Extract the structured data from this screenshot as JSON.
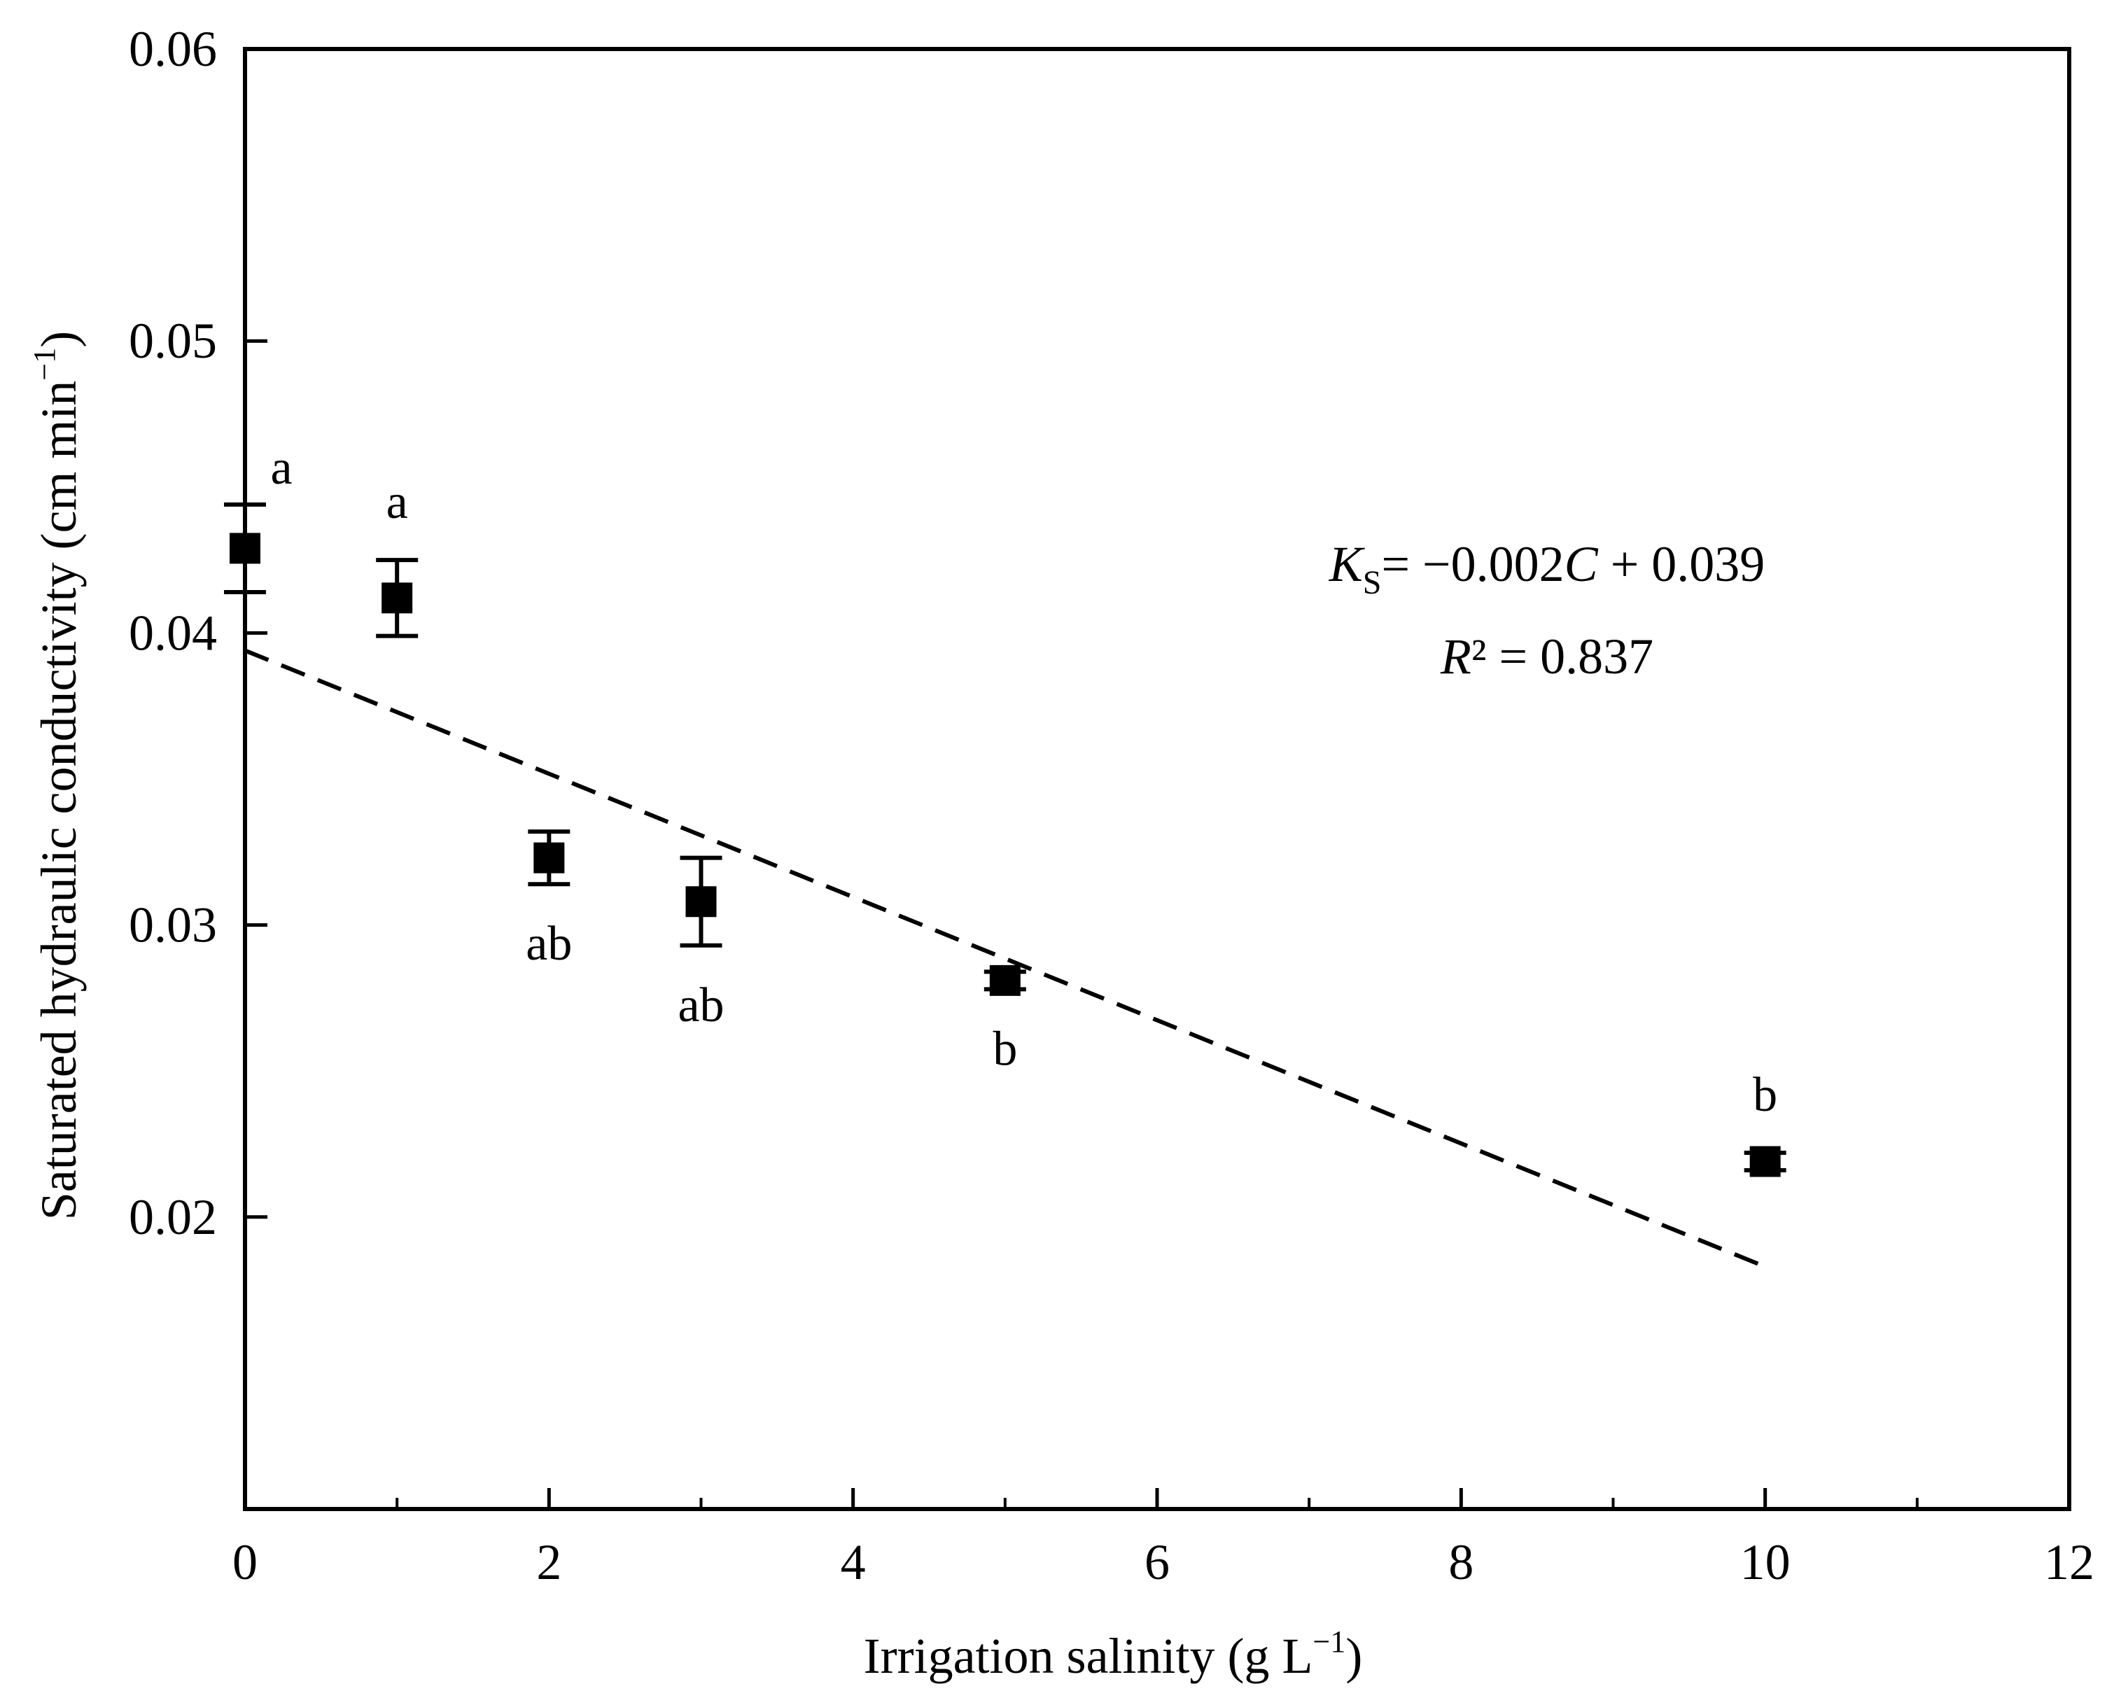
{
  "chart_data": {
    "type": "scatter",
    "title": "",
    "xlabel": "Irrigation salinity (g L",
    "xlabel_sup": "−1",
    "xlabel_close": ")",
    "ylabel": "Saturated hydraulic conductivity (cm min",
    "ylabel_sup": "−1",
    "ylabel_close": ")",
    "xlim": [
      0,
      12
    ],
    "ylim": [
      0.01,
      0.06
    ],
    "x_ticks": [
      0,
      2,
      4,
      6,
      8,
      10,
      12
    ],
    "x_tick_labels": [
      "0",
      "2",
      "4",
      "6",
      "8",
      "10",
      "12"
    ],
    "y_ticks": [
      0.02,
      0.03,
      0.04,
      0.05,
      0.06
    ],
    "y_tick_labels": [
      "0.02",
      "0.03",
      "0.04",
      "0.05",
      "0.06"
    ],
    "x_minor_ticks": [
      1,
      3,
      5,
      7,
      9,
      11
    ],
    "grid": false,
    "series": [
      {
        "name": "Ks",
        "marker": "square",
        "color": "#000000",
        "points": [
          {
            "x": 0,
            "y": 0.0429,
            "err": 0.0015,
            "letter": "a",
            "letter_pos": "upper-right"
          },
          {
            "x": 1,
            "y": 0.0412,
            "err": 0.0013,
            "letter": "a",
            "letter_pos": "above"
          },
          {
            "x": 2,
            "y": 0.0323,
            "err": 0.0009,
            "letter": "ab",
            "letter_pos": "below"
          },
          {
            "x": 3,
            "y": 0.0308,
            "err": 0.0015,
            "letter": "ab",
            "letter_pos": "below"
          },
          {
            "x": 5,
            "y": 0.0281,
            "err": 0.0003,
            "letter": "b",
            "letter_pos": "below"
          },
          {
            "x": 10,
            "y": 0.0219,
            "err": 0.0003,
            "letter": "b",
            "letter_pos": "above"
          }
        ]
      }
    ],
    "fit": {
      "type": "linear",
      "style": "dashed",
      "x_range": [
        0,
        10
      ],
      "y_start": 0.0394,
      "y_end": 0.0183
    },
    "annotation": {
      "line1_k": "K",
      "line1_sub": "S",
      "line1_rest": "= −0.002",
      "line1_c": "C",
      "line1_tail": " + 0.039",
      "line2_r": "R",
      "line2_rest": "² = 0.837"
    }
  }
}
